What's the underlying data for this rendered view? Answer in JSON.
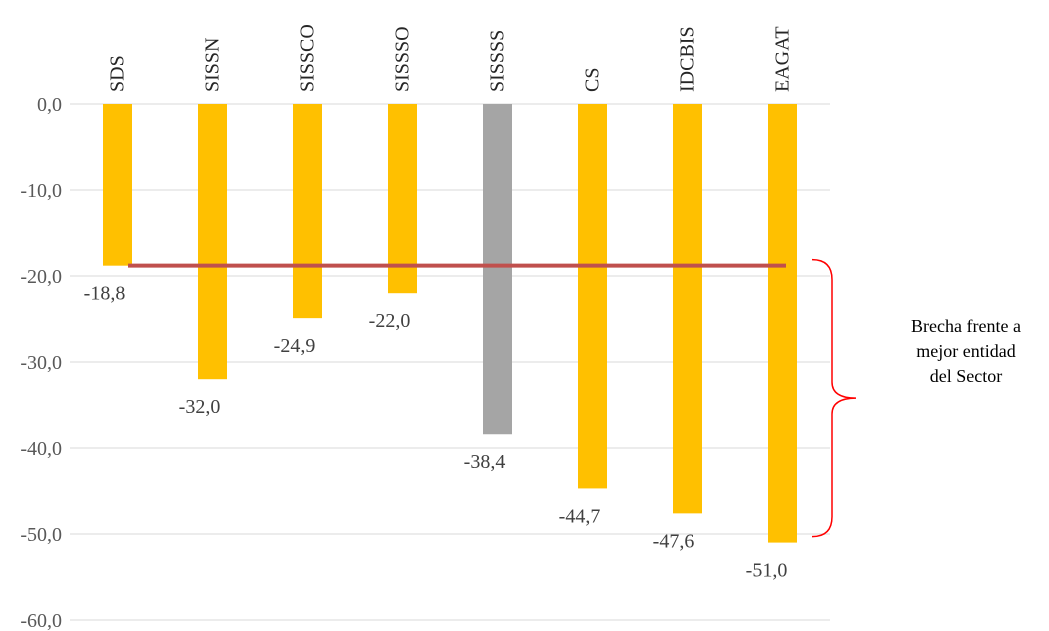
{
  "chart_data": {
    "type": "bar",
    "categories": [
      "SDS",
      "SISSN",
      "SISSCO",
      "SISSSO",
      "SISSSS",
      "CS",
      "IDCBIS",
      "EAGAT"
    ],
    "values": [
      -18.8,
      -32.0,
      -24.9,
      -22.0,
      -38.4,
      -44.7,
      -47.6,
      -51.0
    ],
    "value_labels": [
      "-18,8",
      "-32,0",
      "-24,9",
      "-22,0",
      "-38,4",
      "-44,7",
      "-47,6",
      "-51,0"
    ],
    "highlight_index": 4,
    "ylim": [
      -60,
      0
    ],
    "yticks": [
      0,
      -10,
      -20,
      -30,
      -40,
      -50,
      -60
    ],
    "ytick_labels": [
      "0,0",
      "-10,0",
      "-20,0",
      "-30,0",
      "-40,0",
      "-50,0",
      "-60,0"
    ],
    "grid": true,
    "reference_line": {
      "value": -18.8
    },
    "annotation": {
      "lines": [
        "Brecha frente a",
        "mejor entidad",
        "del Sector"
      ]
    },
    "colors": {
      "bar": "#FFC000",
      "highlight": "#A5A5A5",
      "reference_line": "#C0504D",
      "brace": "#FF0000"
    }
  }
}
